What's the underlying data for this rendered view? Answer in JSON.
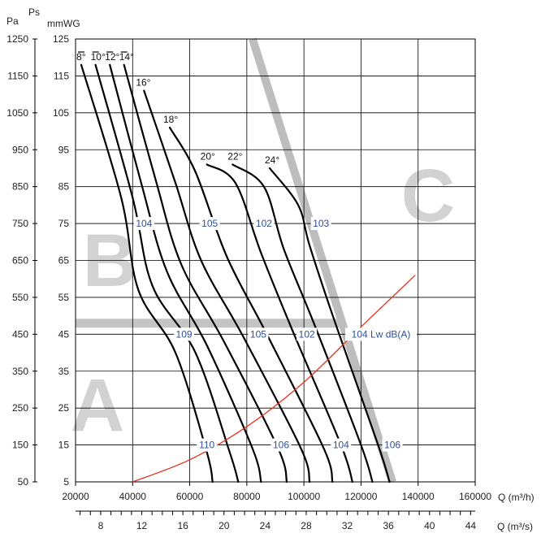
{
  "chart_data": {
    "type": "line",
    "left_axis": {
      "unit_label": "Pa",
      "ticks": [
        50,
        150,
        250,
        350,
        450,
        550,
        650,
        750,
        850,
        950,
        1050,
        1150,
        1250
      ],
      "range": [
        50,
        1250
      ]
    },
    "inner_axis": {
      "symbol_label": "Ps",
      "unit_label": "mmWG",
      "ticks": [
        5,
        15,
        25,
        35,
        45,
        55,
        65,
        75,
        85,
        95,
        105,
        115,
        125
      ],
      "range": [
        5,
        125
      ]
    },
    "x_axis": {
      "label": "Q (m³/h)",
      "ticks": [
        20000,
        40000,
        60000,
        80000,
        100000,
        120000,
        140000,
        160000
      ],
      "range": [
        20000,
        160000
      ]
    },
    "x2_axis": {
      "label": "Q (m³/s)",
      "ticks": [
        8,
        12,
        16,
        20,
        24,
        28,
        32,
        36,
        40,
        44
      ]
    },
    "grid": true,
    "region_labels": [
      "A",
      "B",
      "C"
    ],
    "blade_angle_curves": [
      {
        "name": "8°",
        "points": [
          [
            22000,
            1180
          ],
          [
            36000,
            820
          ],
          [
            42000,
            570
          ],
          [
            55000,
            400
          ],
          [
            66000,
            130
          ],
          [
            68000,
            50
          ]
        ]
      },
      {
        "name": "10°",
        "points": [
          [
            27000,
            1180
          ],
          [
            40000,
            820
          ],
          [
            47000,
            580
          ],
          [
            62000,
            400
          ],
          [
            74000,
            130
          ],
          [
            77000,
            50
          ]
        ]
      },
      {
        "name": "12°",
        "points": [
          [
            32000,
            1180
          ],
          [
            43000,
            860
          ],
          [
            52000,
            620
          ],
          [
            66000,
            420
          ],
          [
            82000,
            140
          ],
          [
            85000,
            50
          ]
        ]
      },
      {
        "name": "14°",
        "points": [
          [
            37000,
            1180
          ],
          [
            48000,
            870
          ],
          [
            57000,
            640
          ],
          [
            72000,
            430
          ],
          [
            91000,
            140
          ],
          [
            94000,
            50
          ]
        ]
      },
      {
        "name": "16°",
        "points": [
          [
            44000,
            1110
          ],
          [
            55000,
            860
          ],
          [
            64000,
            650
          ],
          [
            79000,
            440
          ],
          [
            99000,
            140
          ],
          [
            102000,
            50
          ]
        ]
      },
      {
        "name": "18°",
        "points": [
          [
            53000,
            1010
          ],
          [
            62000,
            890
          ],
          [
            73000,
            660
          ],
          [
            87000,
            450
          ],
          [
            107000,
            140
          ],
          [
            110000,
            50
          ]
        ]
      },
      {
        "name": "20°",
        "points": [
          [
            66000,
            910
          ],
          [
            76000,
            860
          ],
          [
            85000,
            670
          ],
          [
            96000,
            460
          ],
          [
            113000,
            150
          ],
          [
            117000,
            50
          ]
        ]
      },
      {
        "name": "22°",
        "points": [
          [
            75000,
            910
          ],
          [
            86000,
            850
          ],
          [
            93000,
            680
          ],
          [
            104000,
            470
          ],
          [
            120000,
            150
          ],
          [
            124000,
            50
          ]
        ]
      },
      {
        "name": "24°",
        "points": [
          [
            88000,
            900
          ],
          [
            98000,
            800
          ],
          [
            102000,
            690
          ],
          [
            111000,
            480
          ],
          [
            126000,
            150
          ],
          [
            130000,
            50
          ]
        ]
      }
    ],
    "noise_labels": [
      {
        "text": "104",
        "x": 44000,
        "y": 750
      },
      {
        "text": "105",
        "x": 67000,
        "y": 750
      },
      {
        "text": "102",
        "x": 86000,
        "y": 750
      },
      {
        "text": "103",
        "x": 106000,
        "y": 750
      },
      {
        "text": "109",
        "x": 58000,
        "y": 450
      },
      {
        "text": "105",
        "x": 84000,
        "y": 450
      },
      {
        "text": "102",
        "x": 101000,
        "y": 450
      },
      {
        "text": "104 Lw dB(A)",
        "x": 127000,
        "y": 450
      },
      {
        "text": "110",
        "x": 66000,
        "y": 150
      },
      {
        "text": "106",
        "x": 92000,
        "y": 150
      },
      {
        "text": "104",
        "x": 113000,
        "y": 150
      },
      {
        "text": "106",
        "x": 131000,
        "y": 150
      }
    ],
    "system_curve": {
      "color": "#e8321e",
      "points": [
        [
          40000,
          50
        ],
        [
          60000,
          110
        ],
        [
          80000,
          200
        ],
        [
          100000,
          320
        ],
        [
          120000,
          470
        ],
        [
          139000,
          610
        ]
      ]
    },
    "boundary_lines": [
      {
        "region": "A/B",
        "color": "#c4c4c4",
        "points": [
          [
            20000,
            480
          ],
          [
            113000,
            480
          ]
        ]
      },
      {
        "region": "C",
        "color": "#bdbdbd",
        "points": [
          [
            82000,
            1250
          ],
          [
            131000,
            50
          ]
        ]
      }
    ],
    "colors": {
      "curves": "#000000",
      "system_curve": "#e8321e",
      "noise_labels": "#2f4f9a",
      "grid": "#000000",
      "boundary": "#c4c4c4",
      "region_text": "#d2d2d2"
    }
  }
}
